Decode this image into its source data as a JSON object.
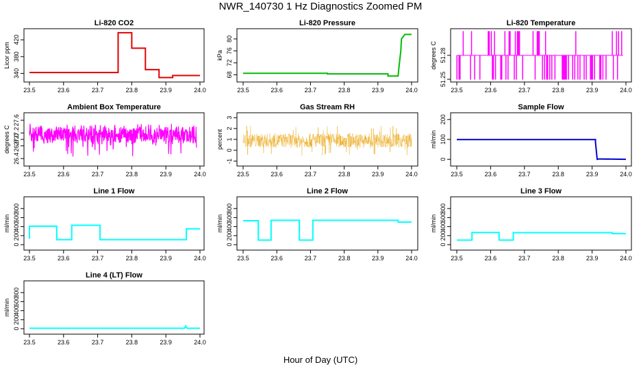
{
  "figure": {
    "title": "NWR_140730  1 Hz Diagnostics Zoomed PM",
    "xlabel": "Hour of Day (UTC)"
  },
  "chart_data": [
    {
      "type": "line",
      "title": "Li-820 CO2",
      "ylabel": "Licor ppm",
      "color": "#e00000",
      "x_ticks": [
        "23.5",
        "23.6",
        "23.7",
        "23.8",
        "23.9",
        "24.0"
      ],
      "xlim": [
        23.5,
        24.0
      ],
      "y_ticks": [
        "340",
        "380",
        "420"
      ],
      "ylim": [
        326,
        440
      ],
      "series": [
        {
          "x": [
            23.5,
            23.7,
            23.76,
            23.76,
            23.8,
            23.8,
            23.84,
            23.84,
            23.88,
            23.88,
            23.92,
            23.92,
            24.0
          ],
          "y": [
            342,
            342,
            342,
            437,
            437,
            400,
            400,
            349,
            349,
            330,
            330,
            335,
            335
          ]
        }
      ]
    },
    {
      "type": "line",
      "title": "Li-820 Pressure",
      "ylabel": "kPa",
      "color": "#00bb00",
      "x_ticks": [
        "23.5",
        "23.6",
        "23.7",
        "23.8",
        "23.9",
        "24.0"
      ],
      "xlim": [
        23.5,
        24.0
      ],
      "y_ticks": [
        "68",
        "72",
        "76",
        "80"
      ],
      "ylim": [
        66.5,
        82.5
      ],
      "series": [
        {
          "x": [
            23.5,
            23.75,
            23.75,
            23.93,
            23.93,
            23.96,
            23.962,
            23.968,
            23.97,
            23.98,
            24.0
          ],
          "y": [
            68.5,
            68.5,
            68.3,
            68.3,
            67.6,
            67.6,
            70,
            76,
            80,
            81.5,
            81.5
          ]
        }
      ]
    },
    {
      "type": "line",
      "title": "Li-820 Temperature",
      "ylabel": "degrees C",
      "color": "#ff00ff",
      "x_ticks": [
        "23.5",
        "23.6",
        "23.7",
        "23.8",
        "23.9",
        "24.0"
      ],
      "xlim": [
        23.5,
        24.0
      ],
      "y_ticks": [
        "51.25",
        "51.28"
      ],
      "ylim": [
        51.25,
        51.31
      ],
      "levels": [
        51.25,
        51.28,
        51.31
      ],
      "base_level": 51.28,
      "series": [
        {
          "x": [
            23.5,
            23.99
          ],
          "y": [
            51.28,
            51.28
          ]
        }
      ]
    },
    {
      "type": "line",
      "title": "Ambient Box Temperature",
      "ylabel": "degrees C",
      "color": "#ff00ff",
      "x_ticks": [
        "23.5",
        "23.6",
        "23.7",
        "23.8",
        "23.9",
        "24.0"
      ],
      "xlim": [
        23.5,
        24.0
      ],
      "y_ticks": [
        "26.4",
        "26.8",
        "27.0",
        "27.2",
        "27.6"
      ],
      "ylim": [
        26.25,
        27.75
      ],
      "mean": 27.15,
      "noise": 0.35,
      "series": [
        {
          "x": [
            23.5,
            23.99
          ],
          "y": [
            27.15,
            27.15
          ]
        }
      ]
    },
    {
      "type": "scatter",
      "title": "Gas Stream RH",
      "ylabel": "percent",
      "color": "#e8a000",
      "x_ticks": [
        "23.5",
        "23.6",
        "23.7",
        "23.8",
        "23.9",
        "24.0"
      ],
      "xlim": [
        23.5,
        24.0
      ],
      "y_ticks": [
        "-1",
        "0",
        "1",
        "2",
        "3"
      ],
      "ylim": [
        -1.2,
        3.2
      ],
      "mean": 0.9,
      "noise": 1.3,
      "series": [
        {
          "x": [
            23.5,
            24.0
          ],
          "y": [
            0.9,
            0.9
          ]
        }
      ]
    },
    {
      "type": "line",
      "title": "Sample Flow",
      "ylabel": "ml/min",
      "color": "#0000cc",
      "x_ticks": [
        "23.5",
        "23.6",
        "23.7",
        "23.8",
        "23.9",
        "24.0"
      ],
      "xlim": [
        23.5,
        24.0
      ],
      "y_ticks": [
        "0",
        "100",
        "200"
      ],
      "ylim": [
        -20,
        220
      ],
      "series": [
        {
          "x": [
            23.5,
            23.91,
            23.91,
            23.915,
            23.92,
            24.0
          ],
          "y": [
            99,
            99,
            85,
            0,
            2,
            0
          ]
        }
      ]
    },
    {
      "type": "line",
      "title": "Line 1 Flow",
      "ylabel": "ml/min",
      "color": "#00ffff",
      "x_ticks": [
        "23.5",
        "23.6",
        "23.7",
        "23.8",
        "23.9",
        "24.0"
      ],
      "xlim": [
        23.5,
        24.0
      ],
      "y_ticks": [
        "0",
        "200",
        "400",
        "600",
        "800"
      ],
      "ylim": [
        -60,
        1000
      ],
      "series": [
        {
          "x": [
            23.5,
            23.5,
            23.58,
            23.58,
            23.624,
            23.624,
            23.707,
            23.707,
            23.96,
            23.96,
            24.0
          ],
          "y": [
            130,
            410,
            410,
            110,
            110,
            430,
            430,
            110,
            110,
            350,
            350
          ]
        }
      ]
    },
    {
      "type": "line",
      "title": "Line 2 Flow",
      "ylabel": "ml/min",
      "color": "#00ffff",
      "x_ticks": [
        "23.5",
        "23.6",
        "23.7",
        "23.8",
        "23.9",
        "24.0"
      ],
      "xlim": [
        23.5,
        24.0
      ],
      "y_ticks": [
        "0",
        "200",
        "400",
        "600",
        "800"
      ],
      "ylim": [
        -60,
        1000
      ],
      "series": [
        {
          "x": [
            23.5,
            23.545,
            23.545,
            23.583,
            23.583,
            23.667,
            23.667,
            23.707,
            23.707,
            23.96,
            23.96,
            24.0
          ],
          "y": [
            530,
            530,
            100,
            100,
            540,
            540,
            100,
            100,
            540,
            540,
            500,
            500
          ]
        }
      ]
    },
    {
      "type": "line",
      "title": "Line 3 Flow",
      "ylabel": "ml/min",
      "color": "#00ffff",
      "x_ticks": [
        "23.5",
        "23.6",
        "23.7",
        "23.8",
        "23.9",
        "24.0"
      ],
      "xlim": [
        23.5,
        24.0
      ],
      "y_ticks": [
        "0",
        "200",
        "400",
        "600",
        "800"
      ],
      "ylim": [
        -60,
        1000
      ],
      "series": [
        {
          "x": [
            23.5,
            23.545,
            23.545,
            23.625,
            23.625,
            23.667,
            23.667,
            23.96,
            23.96,
            24.0
          ],
          "y": [
            100,
            100,
            270,
            270,
            100,
            100,
            265,
            265,
            245,
            245
          ]
        }
      ]
    },
    {
      "type": "line",
      "title": "Line 4 (LT) Flow",
      "ylabel": "ml/min",
      "color": "#00ffff",
      "x_ticks": [
        "23.5",
        "23.6",
        "23.7",
        "23.8",
        "23.9",
        "24.0"
      ],
      "xlim": [
        23.5,
        24.0
      ],
      "y_ticks": [
        "0",
        "200",
        "400",
        "600",
        "800"
      ],
      "ylim": [
        -60,
        1000
      ],
      "series": [
        {
          "x": [
            23.5,
            23.955,
            23.958,
            23.962,
            24.0
          ],
          "y": [
            10,
            10,
            60,
            10,
            10
          ]
        }
      ]
    }
  ]
}
